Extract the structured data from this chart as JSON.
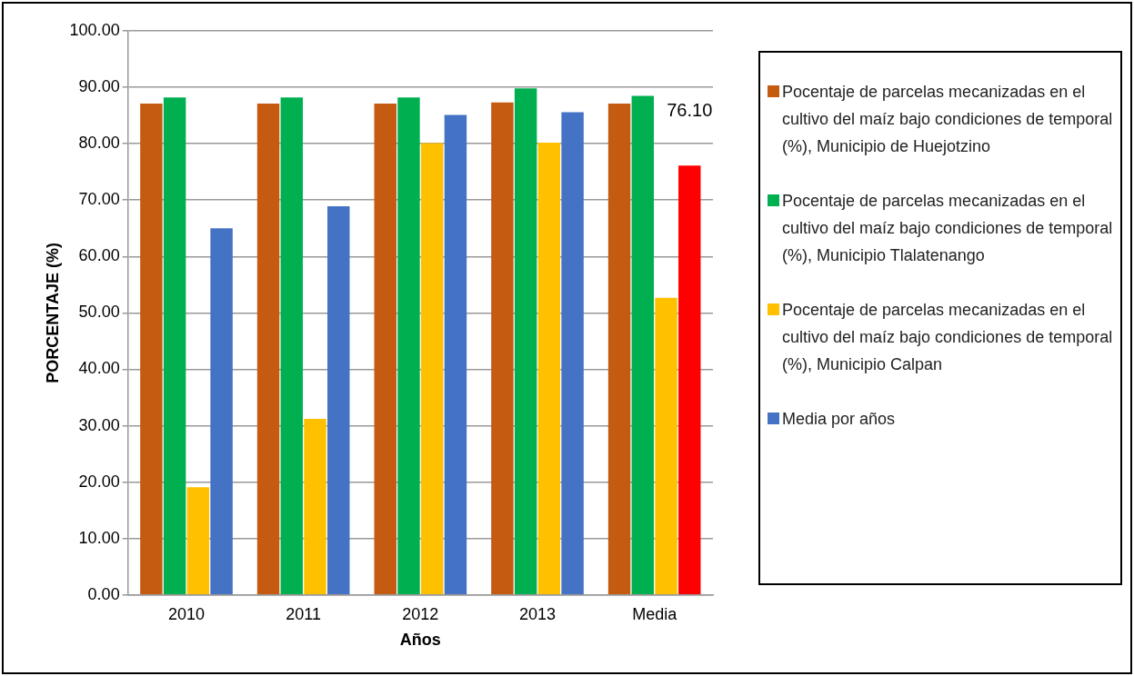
{
  "chart_data": {
    "type": "bar",
    "xlabel": "Años",
    "ylabel": "PORCENTAJE (%)",
    "categories": [
      "2010",
      "2011",
      "2012",
      "2013",
      "Media"
    ],
    "series": [
      {
        "name": "Pocentaje de parcelas mecanizadas en el cultivo del maíz bajo condiciones de temporal (%), Municipio de Huejotzino",
        "color": "#c55a11",
        "values": [
          87.1,
          87.1,
          87.1,
          87.3,
          87.1
        ]
      },
      {
        "name": "Pocentaje de parcelas mecanizadas en el cultivo del maíz bajo condiciones de temporal (%), Municipio Tlalatenango",
        "color": "#00b050",
        "values": [
          88.2,
          88.2,
          88.2,
          89.8,
          88.5
        ]
      },
      {
        "name": "Pocentaje de parcelas mecanizadas en el cultivo del maíz bajo condiciones de temporal (%), Municipio Calpan",
        "color": "#ffc000",
        "values": [
          19.1,
          31.2,
          80.1,
          80.2,
          52.7
        ]
      },
      {
        "name": "Media por años",
        "color": "#4472c4",
        "colors": [
          "#4472c4",
          "#4472c4",
          "#4472c4",
          "#4472c4",
          "#ff0000"
        ],
        "values": [
          65.0,
          68.9,
          85.1,
          85.6,
          76.1
        ],
        "value_labels": [
          null,
          null,
          null,
          null,
          "76.10"
        ]
      }
    ],
    "ylim": [
      0,
      100
    ],
    "yticks": [
      {
        "value": 0,
        "label": "0.00"
      },
      {
        "value": 10,
        "label": "10.00"
      },
      {
        "value": 20,
        "label": "20.00"
      },
      {
        "value": 30,
        "label": "30.00"
      },
      {
        "value": 40,
        "label": "40.00"
      },
      {
        "value": 50,
        "label": "50.00"
      },
      {
        "value": 60,
        "label": "60.00"
      },
      {
        "value": 70,
        "label": "70.00"
      },
      {
        "value": 80,
        "label": "80.00"
      },
      {
        "value": 90,
        "label": "90.00"
      },
      {
        "value": 100,
        "label": "100.00"
      }
    ],
    "grid": "y",
    "legend": "right"
  }
}
